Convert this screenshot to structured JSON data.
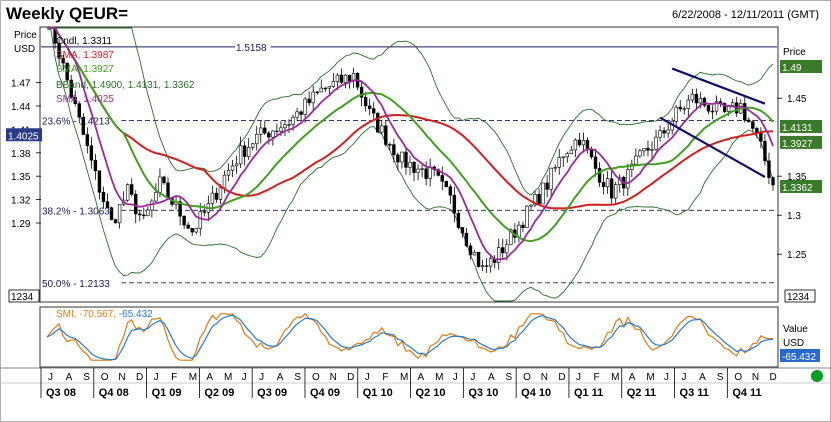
{
  "header": {
    "title": "Weekly QEUR=",
    "date_range": "6/22/2008 - 12/11/2011 (GMT)"
  },
  "axes": {
    "left_title": "Price",
    "left_unit": "USD",
    "right_title": "Price",
    "indicator_title": "Value",
    "indicator_unit": "USD",
    "format_box": "1234"
  },
  "legend": {
    "cndl": "Cndl, 1.3311",
    "sma_long": "SMA, 1.3987",
    "sma_mid": "SMA, 1.3927",
    "bband": "BBand, 1.4900, 1.4131, 1.3362",
    "sma_short": "SMA, 1.4025"
  },
  "indicator": {
    "label": "SMI, ",
    "value1": "-70.567, ",
    "value2": "-65.432",
    "tag_value": "-65.432",
    "colors": {
      "smi": "#e07a10",
      "signal": "#2a7ad0"
    }
  },
  "chart_data": {
    "type": "line",
    "title": "Weekly QEUR=",
    "ylim": [
      1.19,
      1.54
    ],
    "left_ticks": [
      "1.47",
      "1.44",
      "1.41",
      "1.38",
      "1.35",
      "1.32",
      "1.29"
    ],
    "right_ticks": [
      "1.45",
      "1.35",
      "1.3",
      "1.25"
    ],
    "right_tags": [
      {
        "text": "1.49",
        "value": 1.49,
        "color": "#3a7a2a"
      },
      {
        "text": "1.4131",
        "value": 1.4131,
        "color": "#3a7a2a"
      },
      {
        "text": "1.3927",
        "value": 1.3927,
        "color": "#3a7a2a"
      },
      {
        "text": "1.3362",
        "value": 1.3362,
        "color": "#3a7a2a"
      }
    ],
    "left_tag": {
      "text": "1.4025",
      "value": 1.4025,
      "color": "#2a3a8a"
    },
    "levels": [
      {
        "label": "1.5158",
        "value": 1.5158,
        "style": "solid"
      },
      {
        "label": "23.6% - 1.4213",
        "value": 1.4213,
        "style": "dashed"
      },
      {
        "label": "38.2% - 1.3063",
        "value": 1.3063,
        "style": "dashed"
      },
      {
        "label": "50.0% - 1.2133",
        "value": 1.2133,
        "style": "dashed"
      }
    ],
    "weeks": 180,
    "close_key": [
      [
        0,
        1.56
      ],
      [
        4,
        1.49
      ],
      [
        8,
        1.42
      ],
      [
        12,
        1.35
      ],
      [
        16,
        1.29
      ],
      [
        20,
        1.33
      ],
      [
        24,
        1.29
      ],
      [
        28,
        1.34
      ],
      [
        32,
        1.31
      ],
      [
        36,
        1.28
      ],
      [
        40,
        1.31
      ],
      [
        44,
        1.35
      ],
      [
        48,
        1.38
      ],
      [
        52,
        1.4
      ],
      [
        56,
        1.41
      ],
      [
        60,
        1.42
      ],
      [
        64,
        1.44
      ],
      [
        68,
        1.46
      ],
      [
        72,
        1.47
      ],
      [
        76,
        1.48
      ],
      [
        80,
        1.43
      ],
      [
        84,
        1.4
      ],
      [
        88,
        1.37
      ],
      [
        92,
        1.36
      ],
      [
        96,
        1.35
      ],
      [
        100,
        1.32
      ],
      [
        104,
        1.27
      ],
      [
        108,
        1.23
      ],
      [
        112,
        1.25
      ],
      [
        116,
        1.28
      ],
      [
        120,
        1.31
      ],
      [
        124,
        1.34
      ],
      [
        128,
        1.38
      ],
      [
        132,
        1.4
      ],
      [
        136,
        1.36
      ],
      [
        140,
        1.33
      ],
      [
        144,
        1.35
      ],
      [
        148,
        1.38
      ],
      [
        152,
        1.4
      ],
      [
        156,
        1.43
      ],
      [
        160,
        1.45
      ],
      [
        164,
        1.44
      ],
      [
        168,
        1.43
      ],
      [
        172,
        1.44
      ],
      [
        176,
        1.4
      ],
      [
        180,
        1.34
      ]
    ],
    "series": [
      {
        "name": "Cndl",
        "color": "#000000"
      },
      {
        "name": "SMA",
        "color": "#d02020",
        "window": 40
      },
      {
        "name": "SMA",
        "color": "#40a020",
        "window": 20
      },
      {
        "name": "BBand",
        "color": "#2a6e2a",
        "window": 20,
        "k": 2
      },
      {
        "name": "SMA",
        "color": "#9a2a9a",
        "window": 8
      }
    ],
    "trendlines": [
      {
        "from": [
          155,
          1.488
        ],
        "to": [
          178,
          1.443
        ]
      },
      {
        "from": [
          152,
          1.425
        ],
        "to": [
          178,
          1.349
        ]
      }
    ],
    "indicator_ylim": [
      -100,
      100
    ],
    "time_axis": {
      "months": [
        "J",
        "A",
        "S",
        "O",
        "N",
        "D",
        "J",
        "F",
        "M",
        "A",
        "M",
        "J",
        "J",
        "A",
        "S",
        "O",
        "N",
        "D",
        "J",
        "F",
        "M",
        "A",
        "M",
        "J",
        "J",
        "A",
        "S",
        "O",
        "N",
        "D",
        "J",
        "F",
        "M",
        "A",
        "M",
        "J",
        "J",
        "A",
        "S",
        "O",
        "N",
        "D"
      ],
      "quarters": [
        "Q3 08",
        "Q4 08",
        "Q1 09",
        "Q2 09",
        "Q3 09",
        "Q4 09",
        "Q1 10",
        "Q2 10",
        "Q3 10",
        "Q4 10",
        "Q1 11",
        "Q2 11",
        "Q3 11",
        "Q4 11"
      ]
    }
  }
}
